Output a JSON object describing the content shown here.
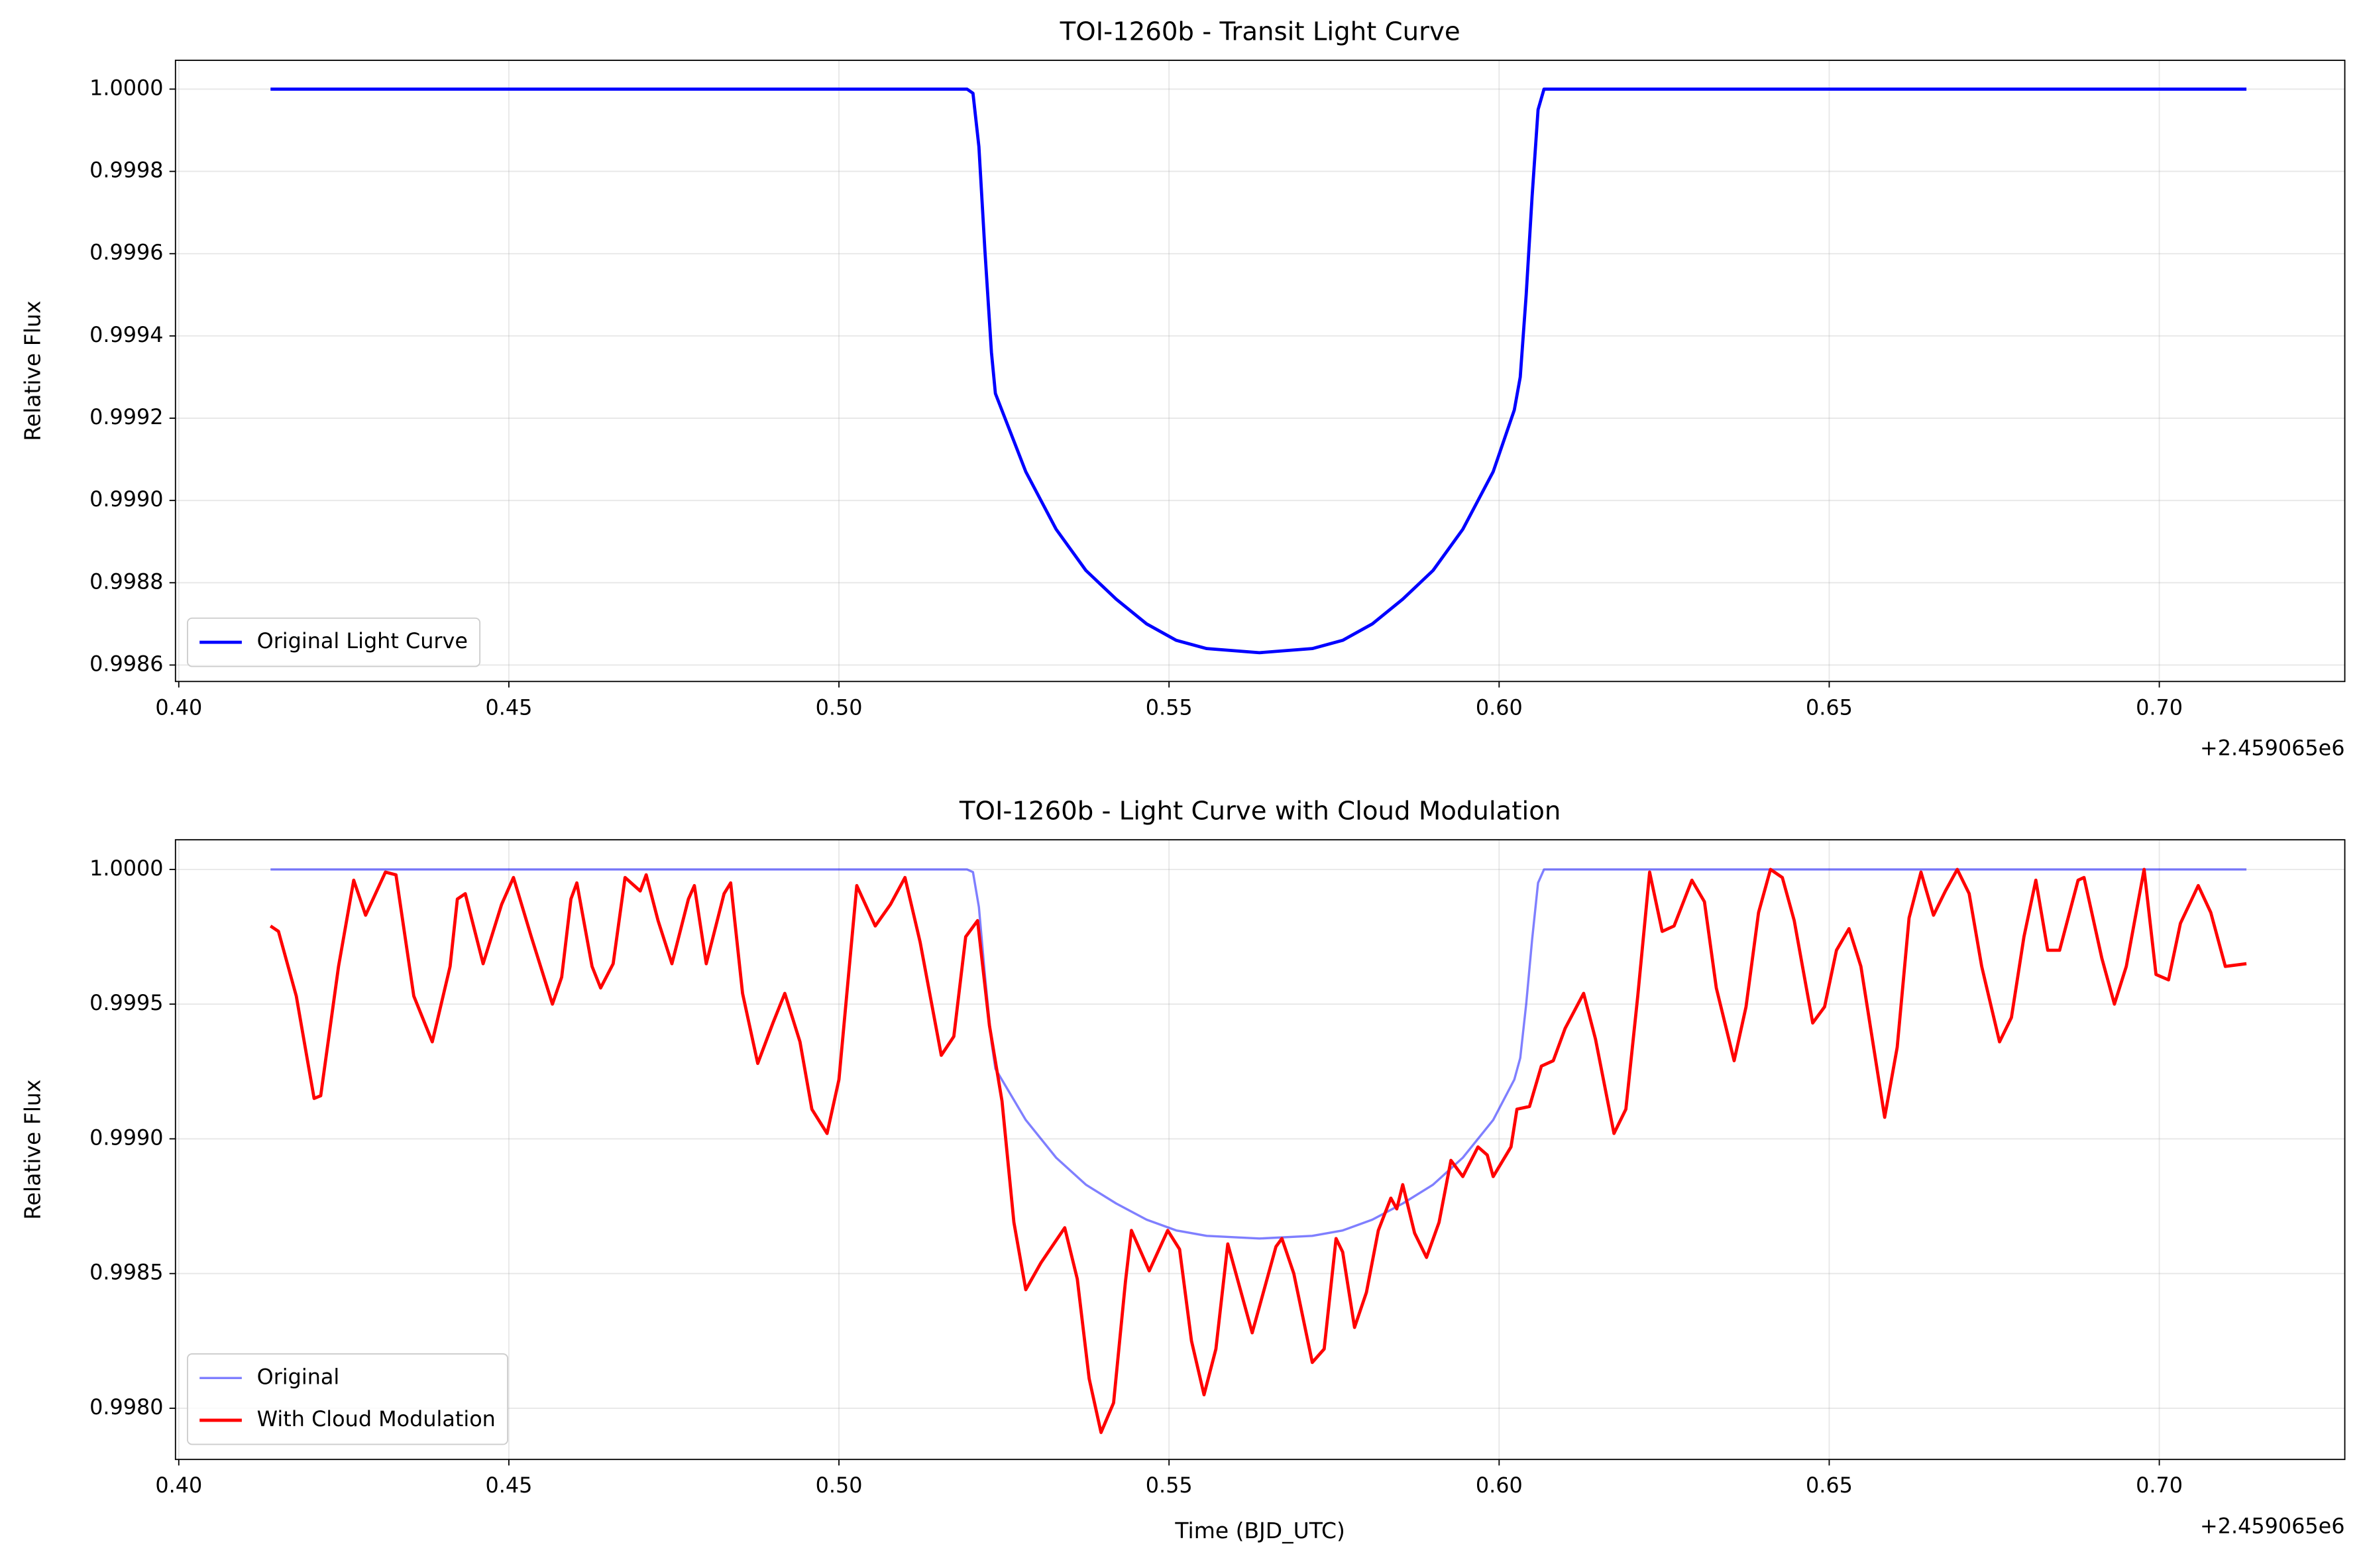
{
  "chart_data": [
    {
      "type": "line",
      "title": "TOI-1260b - Transit Light Curve",
      "ylabel": "Relative Flux",
      "x_offset_label": "+2.459065e6",
      "xlim": [
        0.3995,
        0.7281
      ],
      "ylim": [
        0.99856,
        1.00007
      ],
      "xticks": [
        {
          "value": 0.4,
          "label": "0.40"
        },
        0.45,
        {
          "value": 0.5,
          "label": "0.50"
        },
        0.55,
        {
          "value": 0.6,
          "label": "0.60"
        },
        0.65,
        {
          "value": 0.7,
          "label": "0.70"
        }
      ],
      "yticks": [
        0.9986,
        0.9988,
        {
          "value": 0.999,
          "label": "0.9990"
        },
        0.9992,
        0.9994,
        0.9996,
        0.9998,
        {
          "value": 1,
          "label": "1.0000"
        }
      ],
      "grid": true,
      "legend": "lower left",
      "series": [
        {
          "name": "Original Light Curve",
          "color": "#0000ff",
          "alpha": 1,
          "x": [
            0.4139,
            0.5194,
            0.5203,
            0.5212,
            0.5221,
            0.5231,
            0.5237,
            0.5283,
            0.5329,
            0.5374,
            0.542,
            0.5466,
            0.5511,
            0.5557,
            0.5637,
            0.5717,
            0.5763,
            0.5808,
            0.5854,
            0.59,
            0.5945,
            0.5991,
            0.6023,
            0.6032,
            0.6041,
            0.605,
            0.6059,
            0.6068,
            0.7132
          ],
          "values": [
            1,
            1,
            0.99999,
            0.99986,
            0.99961,
            0.99936,
            0.99926,
            0.99907,
            0.99893,
            0.99883,
            0.99876,
            0.9987,
            0.99866,
            0.99864,
            0.99863,
            0.99864,
            0.99866,
            0.9987,
            0.99876,
            0.99883,
            0.99893,
            0.99907,
            0.99922,
            0.9993,
            0.9995,
            0.99974,
            0.99995,
            1,
            1
          ]
        }
      ]
    },
    {
      "type": "line",
      "title": "TOI-1260b - Light Curve with Cloud Modulation",
      "xlabel": "Time (BJD_UTC)",
      "ylabel": "Relative Flux",
      "x_offset_label": "+2.459065e6",
      "xlim": [
        0.3995,
        0.7281
      ],
      "ylim": [
        0.99781,
        1.00011
      ],
      "xticks": [
        {
          "value": 0.4,
          "label": "0.40"
        },
        0.45,
        {
          "value": 0.5,
          "label": "0.50"
        },
        0.55,
        {
          "value": 0.6,
          "label": "0.60"
        },
        0.65,
        {
          "value": 0.7,
          "label": "0.70"
        }
      ],
      "yticks": [
        {
          "value": 0.998,
          "label": "0.9980"
        },
        0.9985,
        {
          "value": 0.999,
          "label": "0.9990"
        },
        0.9995,
        {
          "value": 1,
          "label": "1.0000"
        }
      ],
      "grid": true,
      "legend": "lower left",
      "series": [
        {
          "name": "Original",
          "color": "#0000ff",
          "alpha": 0.5,
          "x": [
            0.4139,
            0.5194,
            0.5203,
            0.5212,
            0.5221,
            0.5231,
            0.5237,
            0.5283,
            0.5329,
            0.5374,
            0.542,
            0.5466,
            0.5511,
            0.5557,
            0.5637,
            0.5717,
            0.5763,
            0.5808,
            0.5854,
            0.59,
            0.5945,
            0.5991,
            0.6023,
            0.6032,
            0.6041,
            0.605,
            0.6059,
            0.6068,
            0.7132
          ],
          "values": [
            1,
            1,
            0.99999,
            0.99986,
            0.99961,
            0.99936,
            0.99926,
            0.99907,
            0.99893,
            0.99883,
            0.99876,
            0.9987,
            0.99866,
            0.99864,
            0.99863,
            0.99864,
            0.99866,
            0.9987,
            0.99876,
            0.99883,
            0.99893,
            0.99907,
            0.99922,
            0.9993,
            0.9995,
            0.99974,
            0.99995,
            1,
            1
          ]
        },
        {
          "name": "With Cloud Modulation",
          "color": "#ff0000",
          "alpha": 1,
          "x": [
            0.4139,
            0.4151,
            0.4178,
            0.4205,
            0.4215,
            0.4242,
            0.4265,
            0.4283,
            0.4313,
            0.4329,
            0.4356,
            0.4384,
            0.4411,
            0.4422,
            0.4434,
            0.4461,
            0.4489,
            0.4507,
            0.4534,
            0.4566,
            0.458,
            0.4594,
            0.4603,
            0.4626,
            0.4639,
            0.4658,
            0.4676,
            0.4699,
            0.4708,
            0.4726,
            0.4747,
            0.4772,
            0.4781,
            0.4799,
            0.4826,
            0.4836,
            0.4854,
            0.4877,
            0.49,
            0.4918,
            0.4941,
            0.4959,
            0.4982,
            0.5,
            0.5027,
            0.5055,
            0.5078,
            0.51,
            0.5123,
            0.5155,
            0.5174,
            0.5192,
            0.521,
            0.5228,
            0.5247,
            0.5265,
            0.5283,
            0.5306,
            0.5342,
            0.5361,
            0.5379,
            0.5397,
            0.5416,
            0.5434,
            0.5443,
            0.547,
            0.5498,
            0.5516,
            0.5534,
            0.5553,
            0.5571,
            0.5589,
            0.5626,
            0.5662,
            0.5671,
            0.5689,
            0.5717,
            0.5735,
            0.5753,
            0.5763,
            0.5781,
            0.5799,
            0.5817,
            0.5836,
            0.5845,
            0.5854,
            0.5872,
            0.589,
            0.5909,
            0.5927,
            0.5945,
            0.5968,
            0.5982,
            0.5991,
            0.6018,
            0.6027,
            0.6046,
            0.6064,
            0.6082,
            0.61,
            0.6128,
            0.6146,
            0.6174,
            0.6192,
            0.621,
            0.6228,
            0.6247,
            0.6265,
            0.6292,
            0.6311,
            0.6329,
            0.6356,
            0.6374,
            0.6393,
            0.6411,
            0.6429,
            0.6447,
            0.6475,
            0.6493,
            0.6511,
            0.653,
            0.6548,
            0.6584,
            0.6603,
            0.6621,
            0.6639,
            0.6658,
            0.6676,
            0.6694,
            0.6712,
            0.6731,
            0.6758,
            0.6776,
            0.6795,
            0.6813,
            0.6831,
            0.6849,
            0.6877,
            0.6886,
            0.6913,
            0.6932,
            0.695,
            0.6977,
            0.6995,
            0.7014,
            0.7032,
            0.7059,
            0.7078,
            0.71,
            0.7132
          ],
          "values": [
            0.99979,
            0.99977,
            0.99953,
            0.99915,
            0.99916,
            0.99964,
            0.99996,
            0.99983,
            0.99999,
            0.99998,
            0.99953,
            0.99936,
            0.99964,
            0.99989,
            0.99991,
            0.99965,
            0.99987,
            0.99997,
            0.99975,
            0.9995,
            0.9996,
            0.99989,
            0.99995,
            0.99964,
            0.99956,
            0.99965,
            0.99997,
            0.99992,
            0.99998,
            0.99981,
            0.99965,
            0.99989,
            0.99994,
            0.99965,
            0.99991,
            0.99995,
            0.99954,
            0.99928,
            0.99943,
            0.99954,
            0.99936,
            0.99911,
            0.99902,
            0.99922,
            0.99994,
            0.99979,
            0.99987,
            0.99997,
            0.99973,
            0.99931,
            0.99938,
            0.99975,
            0.99981,
            0.99942,
            0.99914,
            0.99869,
            0.99844,
            0.99854,
            0.99867,
            0.99848,
            0.99811,
            0.99791,
            0.99802,
            0.99847,
            0.99866,
            0.99851,
            0.99866,
            0.99859,
            0.99825,
            0.99805,
            0.99822,
            0.99861,
            0.99828,
            0.9986,
            0.99863,
            0.9985,
            0.99817,
            0.99822,
            0.99863,
            0.99858,
            0.9983,
            0.99843,
            0.99866,
            0.99878,
            0.99874,
            0.99883,
            0.99865,
            0.99856,
            0.99869,
            0.99892,
            0.99886,
            0.99897,
            0.99894,
            0.99886,
            0.99897,
            0.99911,
            0.99912,
            0.99927,
            0.99929,
            0.99941,
            0.99954,
            0.99937,
            0.99902,
            0.99911,
            0.99953,
            0.99999,
            0.99977,
            0.99979,
            0.99996,
            0.99988,
            0.99956,
            0.99929,
            0.99949,
            0.99984,
            1.0,
            0.99997,
            0.99981,
            0.99943,
            0.99949,
            0.9997,
            0.99978,
            0.99964,
            0.99908,
            0.99934,
            0.99982,
            0.99999,
            0.99983,
            0.99992,
            1.0,
            0.99991,
            0.99964,
            0.99936,
            0.99945,
            0.99975,
            0.99996,
            0.9997,
            0.9997,
            0.99996,
            0.99997,
            0.99967,
            0.9995,
            0.99964,
            1.0,
            0.99961,
            0.99959,
            0.9998,
            0.99994,
            0.99984,
            0.99964,
            0.99965
          ]
        }
      ]
    }
  ]
}
